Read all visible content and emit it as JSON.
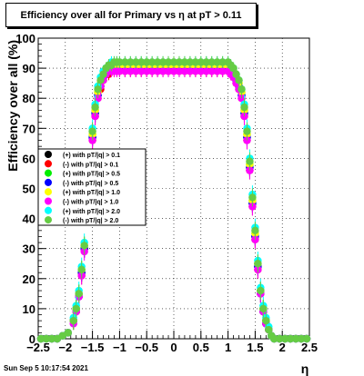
{
  "chart_data": {
    "type": "scatter",
    "title": "Efficiency over all for Primary vs    η at pT > 0.11",
    "xlabel": "η",
    "ylabel": "Efficiency over all (%)",
    "xlim": [
      -2.5,
      2.5
    ],
    "ylim": [
      0,
      100
    ],
    "x_ticks": [
      "−2.5",
      "−2",
      "−1.5",
      "−1",
      "−0.5",
      "0",
      "0.5",
      "1",
      "1.5",
      "2",
      "2.5"
    ],
    "y_ticks": [
      "0",
      "10",
      "20",
      "30",
      "40",
      "50",
      "60",
      "70",
      "80",
      "90",
      "100"
    ],
    "grid": true,
    "legend_position": "middle-left",
    "footer": "Sun Sep  5 10:17:54 2021",
    "x": [
      -2.45,
      -2.35,
      -2.25,
      -2.15,
      -2.05,
      -1.95,
      -1.85,
      -1.8,
      -1.75,
      -1.7,
      -1.65,
      -1.6,
      -1.55,
      -1.5,
      -1.45,
      -1.4,
      -1.35,
      -1.3,
      -1.25,
      -1.2,
      -1.15,
      -1.1,
      -1.05,
      -1.0,
      -0.9,
      -0.8,
      -0.7,
      -0.6,
      -0.5,
      -0.4,
      -0.3,
      -0.2,
      -0.1,
      0.0,
      0.1,
      0.2,
      0.3,
      0.4,
      0.5,
      0.6,
      0.7,
      0.8,
      0.9,
      1.0,
      1.05,
      1.1,
      1.15,
      1.2,
      1.25,
      1.3,
      1.35,
      1.4,
      1.45,
      1.5,
      1.55,
      1.6,
      1.65,
      1.7,
      1.75,
      1.8,
      1.85,
      1.95,
      2.05,
      2.15,
      2.25,
      2.35,
      2.45
    ],
    "series": [
      {
        "name": "(+) with pT/|q| > 0.1",
        "color": "#000000",
        "values": [
          0,
          0,
          0,
          0,
          1,
          2,
          6,
          10,
          15,
          22,
          30,
          42,
          55,
          67,
          75,
          81,
          84,
          87,
          88,
          89,
          90,
          90,
          90,
          90,
          90,
          90,
          90,
          90,
          90,
          90,
          90,
          90,
          90,
          90,
          90,
          90,
          90,
          90,
          90,
          90,
          90,
          90,
          90,
          90,
          89,
          88,
          86,
          84,
          81,
          75,
          67,
          57,
          45,
          34,
          24,
          16,
          10,
          6,
          3,
          1,
          0,
          0,
          0,
          0,
          0,
          0,
          0
        ]
      },
      {
        "name": "(-) with pT/|q| > 0.1",
        "color": "#ff0000",
        "values": [
          0,
          0,
          0,
          0,
          1,
          2,
          6,
          9,
          14,
          21,
          30,
          41,
          54,
          66,
          74,
          80,
          83,
          86,
          88,
          88,
          89,
          89,
          89,
          89,
          89,
          89,
          89,
          89,
          89,
          89,
          89,
          89,
          89,
          89,
          89,
          89,
          89,
          89,
          89,
          89,
          89,
          89,
          89,
          89,
          88,
          87,
          85,
          83,
          80,
          74,
          66,
          56,
          44,
          33,
          23,
          15,
          9,
          5,
          3,
          1,
          0,
          0,
          0,
          0,
          0,
          0,
          0
        ]
      },
      {
        "name": "(+) with pT/|q| > 0.5",
        "color": "#00ee00",
        "values": [
          0,
          0,
          0,
          0,
          1,
          2,
          6,
          10,
          15,
          23,
          31,
          43,
          56,
          68,
          76,
          82,
          85,
          88,
          89,
          90,
          90,
          90,
          91,
          91,
          91,
          91,
          91,
          91,
          91,
          91,
          91,
          91,
          91,
          91,
          91,
          91,
          91,
          91,
          91,
          91,
          91,
          91,
          91,
          90,
          90,
          89,
          87,
          85,
          82,
          76,
          68,
          58,
          46,
          35,
          25,
          16,
          10,
          6,
          3,
          1,
          0,
          0,
          0,
          0,
          0,
          0,
          0
        ]
      },
      {
        "name": "(-) with pT/|q| > 0.5",
        "color": "#0000ff",
        "values": [
          0,
          0,
          0,
          0,
          1,
          2,
          6,
          10,
          14,
          22,
          30,
          42,
          55,
          67,
          75,
          81,
          84,
          87,
          88,
          89,
          90,
          90,
          90,
          90,
          90,
          90,
          90,
          90,
          90,
          90,
          90,
          90,
          90,
          90,
          90,
          90,
          90,
          90,
          90,
          90,
          90,
          90,
          90,
          90,
          89,
          88,
          86,
          84,
          81,
          75,
          67,
          57,
          45,
          34,
          24,
          15,
          9,
          5,
          3,
          1,
          0,
          0,
          0,
          0,
          0,
          0,
          0
        ]
      },
      {
        "name": "(+) with pT/|q| > 1.0",
        "color": "#ffff00",
        "values": [
          0,
          0,
          0,
          0,
          1,
          2,
          6,
          10,
          15,
          23,
          31,
          43,
          56,
          68,
          76,
          82,
          85,
          88,
          89,
          90,
          91,
          91,
          91,
          91,
          91,
          91,
          91,
          91,
          91,
          91,
          91,
          91,
          91,
          91,
          91,
          91,
          91,
          91,
          91,
          91,
          91,
          91,
          91,
          91,
          90,
          89,
          87,
          85,
          82,
          76,
          68,
          58,
          46,
          35,
          25,
          16,
          10,
          6,
          3,
          1,
          0,
          0,
          0,
          0,
          0,
          0,
          0
        ]
      },
      {
        "name": "(-) with pT/|q| > 1.0",
        "color": "#ff00ff",
        "values": [
          0,
          0,
          0,
          0,
          1,
          2,
          5,
          9,
          14,
          21,
          29,
          41,
          54,
          66,
          74,
          80,
          84,
          86,
          88,
          89,
          89,
          89,
          89,
          89,
          89,
          89,
          89,
          89,
          89,
          89,
          89,
          89,
          89,
          89,
          89,
          89,
          89,
          89,
          89,
          89,
          89,
          89,
          89,
          89,
          88,
          87,
          85,
          83,
          80,
          74,
          66,
          56,
          44,
          33,
          23,
          15,
          9,
          5,
          3,
          1,
          0,
          0,
          0,
          0,
          0,
          0,
          0
        ]
      },
      {
        "name": "(+) with pT/|q| > 2.0",
        "color": "#00ffff",
        "values": [
          0,
          0,
          0,
          0,
          1,
          2,
          7,
          11,
          16,
          24,
          32,
          45,
          58,
          70,
          78,
          84,
          87,
          89,
          90,
          91,
          92,
          92,
          92,
          92,
          92,
          92,
          92,
          92,
          92,
          92,
          92,
          92,
          92,
          92,
          92,
          92,
          92,
          92,
          92,
          92,
          92,
          92,
          92,
          92,
          91,
          90,
          88,
          86,
          83,
          78,
          70,
          60,
          48,
          37,
          26,
          17,
          11,
          7,
          4,
          1,
          0,
          0,
          0,
          0,
          0,
          0,
          0
        ]
      },
      {
        "name": "(-) with pT/|q| > 2.0",
        "color": "#66cc44",
        "values": [
          0,
          0,
          0,
          0,
          1,
          2,
          6,
          10,
          15,
          23,
          31,
          44,
          57,
          69,
          77,
          83,
          86,
          88,
          90,
          91,
          91,
          92,
          92,
          92,
          92,
          92,
          92,
          92,
          92,
          92,
          92,
          92,
          92,
          92,
          92,
          92,
          92,
          92,
          92,
          92,
          92,
          92,
          92,
          92,
          91,
          90,
          88,
          86,
          83,
          77,
          69,
          59,
          47,
          36,
          25,
          16,
          10,
          6,
          3,
          1,
          0,
          0,
          0,
          0,
          0,
          0,
          0
        ]
      }
    ]
  }
}
